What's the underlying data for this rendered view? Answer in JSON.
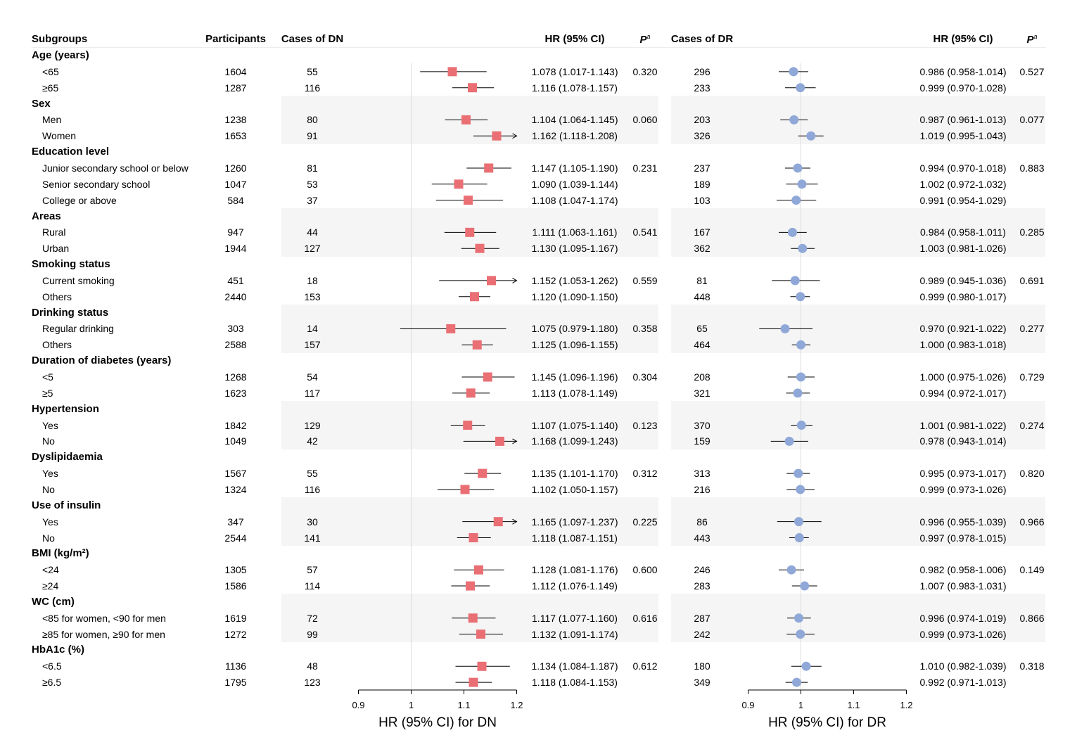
{
  "headers": {
    "subgroups": "Subgroups",
    "participants": "Participants",
    "cases_dn": "Cases of DN",
    "hr_dn": "HR (95% CI)",
    "p_dn": "P",
    "p_dn_sup": "a",
    "cases_dr": "Cases of DR",
    "hr_dr": "HR (95% CI)",
    "p_dr": "P",
    "p_dr_sup": "a"
  },
  "groups": [
    {
      "label": "Age (years)",
      "rows": [
        {
          "label": "<65",
          "participants": "1604",
          "dn_cases": "55",
          "dn_hr_text": "1.078 (1.017-1.143)",
          "dn_p": "0.320",
          "dn_hr": 1.078,
          "dn_lo": 1.017,
          "dn_hi": 1.143,
          "dr_cases": "296",
          "dr_hr_text": "0.986 (0.958-1.014)",
          "dr_p": "0.527",
          "dr_hr": 0.986,
          "dr_lo": 0.958,
          "dr_hi": 1.014
        },
        {
          "label": "≥65",
          "participants": "1287",
          "dn_cases": "116",
          "dn_hr_text": "1.116 (1.078-1.157)",
          "dn_p": "",
          "dn_hr": 1.116,
          "dn_lo": 1.078,
          "dn_hi": 1.157,
          "dr_cases": "233",
          "dr_hr_text": "0.999 (0.970-1.028)",
          "dr_p": "",
          "dr_hr": 0.999,
          "dr_lo": 0.97,
          "dr_hi": 1.028
        }
      ]
    },
    {
      "label": "Sex",
      "rows": [
        {
          "label": "Men",
          "participants": "1238",
          "dn_cases": "80",
          "dn_hr_text": "1.104 (1.064-1.145)",
          "dn_p": "0.060",
          "dn_hr": 1.104,
          "dn_lo": 1.064,
          "dn_hi": 1.145,
          "dr_cases": "203",
          "dr_hr_text": "0.987 (0.961-1.013)",
          "dr_p": "0.077",
          "dr_hr": 0.987,
          "dr_lo": 0.961,
          "dr_hi": 1.013
        },
        {
          "label": "Women",
          "participants": "1653",
          "dn_cases": "91",
          "dn_hr_text": "1.162 (1.118-1.208)",
          "dn_p": "",
          "dn_hr": 1.162,
          "dn_lo": 1.118,
          "dn_hi": 1.208,
          "dr_cases": "326",
          "dr_hr_text": "1.019 (0.995-1.043)",
          "dr_p": "",
          "dr_hr": 1.019,
          "dr_lo": 0.995,
          "dr_hi": 1.043
        }
      ]
    },
    {
      "label": "Education level",
      "rows": [
        {
          "label": "Junior secondary school or below",
          "participants": "1260",
          "dn_cases": "81",
          "dn_hr_text": "1.147 (1.105-1.190)",
          "dn_p": "0.231",
          "dn_hr": 1.147,
          "dn_lo": 1.105,
          "dn_hi": 1.19,
          "dr_cases": "237",
          "dr_hr_text": "0.994 (0.970-1.018)",
          "dr_p": "0.883",
          "dr_hr": 0.994,
          "dr_lo": 0.97,
          "dr_hi": 1.018
        },
        {
          "label": "Senior secondary school",
          "participants": "1047",
          "dn_cases": "53",
          "dn_hr_text": "1.090 (1.039-1.144)",
          "dn_p": "",
          "dn_hr": 1.09,
          "dn_lo": 1.039,
          "dn_hi": 1.144,
          "dr_cases": "189",
          "dr_hr_text": "1.002 (0.972-1.032)",
          "dr_p": "",
          "dr_hr": 1.002,
          "dr_lo": 0.972,
          "dr_hi": 1.032
        },
        {
          "label": "College or above",
          "participants": "584",
          "dn_cases": "37",
          "dn_hr_text": "1.108 (1.047-1.174)",
          "dn_p": "",
          "dn_hr": 1.108,
          "dn_lo": 1.047,
          "dn_hi": 1.174,
          "dr_cases": "103",
          "dr_hr_text": "0.991 (0.954-1.029)",
          "dr_p": "",
          "dr_hr": 0.991,
          "dr_lo": 0.954,
          "dr_hi": 1.029
        }
      ]
    },
    {
      "label": "Areas",
      "rows": [
        {
          "label": "Rural",
          "participants": "947",
          "dn_cases": "44",
          "dn_hr_text": "1.111 (1.063-1.161)",
          "dn_p": "0.541",
          "dn_hr": 1.111,
          "dn_lo": 1.063,
          "dn_hi": 1.161,
          "dr_cases": "167",
          "dr_hr_text": "0.984 (0.958-1.011)",
          "dr_p": "0.285",
          "dr_hr": 0.984,
          "dr_lo": 0.958,
          "dr_hi": 1.011
        },
        {
          "label": "Urban",
          "participants": "1944",
          "dn_cases": "127",
          "dn_hr_text": "1.130 (1.095-1.167)",
          "dn_p": "",
          "dn_hr": 1.13,
          "dn_lo": 1.095,
          "dn_hi": 1.167,
          "dr_cases": "362",
          "dr_hr_text": "1.003 (0.981-1.026)",
          "dr_p": "",
          "dr_hr": 1.003,
          "dr_lo": 0.981,
          "dr_hi": 1.026
        }
      ]
    },
    {
      "label": "Smoking status",
      "rows": [
        {
          "label": "Current smoking",
          "participants": "451",
          "dn_cases": "18",
          "dn_hr_text": "1.152 (1.053-1.262)",
          "dn_p": "0.559",
          "dn_hr": 1.152,
          "dn_lo": 1.053,
          "dn_hi": 1.262,
          "dr_cases": "81",
          "dr_hr_text": "0.989 (0.945-1.036)",
          "dr_p": "0.691",
          "dr_hr": 0.989,
          "dr_lo": 0.945,
          "dr_hi": 1.036
        },
        {
          "label": "Others",
          "participants": "2440",
          "dn_cases": "153",
          "dn_hr_text": "1.120 (1.090-1.150)",
          "dn_p": "",
          "dn_hr": 1.12,
          "dn_lo": 1.09,
          "dn_hi": 1.15,
          "dr_cases": "448",
          "dr_hr_text": "0.999 (0.980-1.017)",
          "dr_p": "",
          "dr_hr": 0.999,
          "dr_lo": 0.98,
          "dr_hi": 1.017
        }
      ]
    },
    {
      "label": "Drinking status",
      "rows": [
        {
          "label": "Regular drinking",
          "participants": "303",
          "dn_cases": "14",
          "dn_hr_text": "1.075 (0.979-1.180)",
          "dn_p": "0.358",
          "dn_hr": 1.075,
          "dn_lo": 0.979,
          "dn_hi": 1.18,
          "dr_cases": "65",
          "dr_hr_text": "0.970 (0.921-1.022)",
          "dr_p": "0.277",
          "dr_hr": 0.97,
          "dr_lo": 0.921,
          "dr_hi": 1.022
        },
        {
          "label": "Others",
          "participants": "2588",
          "dn_cases": "157",
          "dn_hr_text": "1.125 (1.096-1.155)",
          "dn_p": "",
          "dn_hr": 1.125,
          "dn_lo": 1.096,
          "dn_hi": 1.155,
          "dr_cases": "464",
          "dr_hr_text": "1.000 (0.983-1.018)",
          "dr_p": "",
          "dr_hr": 1.0,
          "dr_lo": 0.983,
          "dr_hi": 1.018
        }
      ]
    },
    {
      "label": "Duration of diabetes (years)",
      "rows": [
        {
          "label": "<5",
          "participants": "1268",
          "dn_cases": "54",
          "dn_hr_text": "1.145 (1.096-1.196)",
          "dn_p": "0.304",
          "dn_hr": 1.145,
          "dn_lo": 1.096,
          "dn_hi": 1.196,
          "dr_cases": "208",
          "dr_hr_text": "1.000 (0.975-1.026)",
          "dr_p": "0.729",
          "dr_hr": 1.0,
          "dr_lo": 0.975,
          "dr_hi": 1.026
        },
        {
          "label": "≥5",
          "participants": "1623",
          "dn_cases": "117",
          "dn_hr_text": "1.113 (1.078-1.149)",
          "dn_p": "",
          "dn_hr": 1.113,
          "dn_lo": 1.078,
          "dn_hi": 1.149,
          "dr_cases": "321",
          "dr_hr_text": "0.994 (0.972-1.017)",
          "dr_p": "",
          "dr_hr": 0.994,
          "dr_lo": 0.972,
          "dr_hi": 1.017
        }
      ]
    },
    {
      "label": "Hypertension",
      "rows": [
        {
          "label": "Yes",
          "participants": "1842",
          "dn_cases": "129",
          "dn_hr_text": "1.107 (1.075-1.140)",
          "dn_p": "0.123",
          "dn_hr": 1.107,
          "dn_lo": 1.075,
          "dn_hi": 1.14,
          "dr_cases": "370",
          "dr_hr_text": "1.001 (0.981-1.022)",
          "dr_p": "0.274",
          "dr_hr": 1.001,
          "dr_lo": 0.981,
          "dr_hi": 1.022
        },
        {
          "label": "No",
          "participants": "1049",
          "dn_cases": "42",
          "dn_hr_text": "1.168 (1.099-1.243)",
          "dn_p": "",
          "dn_hr": 1.168,
          "dn_lo": 1.099,
          "dn_hi": 1.243,
          "dr_cases": "159",
          "dr_hr_text": "0.978 (0.943-1.014)",
          "dr_p": "",
          "dr_hr": 0.978,
          "dr_lo": 0.943,
          "dr_hi": 1.014
        }
      ]
    },
    {
      "label": "Dyslipidaemia",
      "rows": [
        {
          "label": "Yes",
          "participants": "1567",
          "dn_cases": "55",
          "dn_hr_text": "1.135 (1.101-1.170)",
          "dn_p": "0.312",
          "dn_hr": 1.135,
          "dn_lo": 1.101,
          "dn_hi": 1.17,
          "dr_cases": "313",
          "dr_hr_text": "0.995 (0.973-1.017)",
          "dr_p": "0.820",
          "dr_hr": 0.995,
          "dr_lo": 0.973,
          "dr_hi": 1.017
        },
        {
          "label": "No",
          "participants": "1324",
          "dn_cases": "116",
          "dn_hr_text": "1.102 (1.050-1.157)",
          "dn_p": "",
          "dn_hr": 1.102,
          "dn_lo": 1.05,
          "dn_hi": 1.157,
          "dr_cases": "216",
          "dr_hr_text": "0.999 (0.973-1.026)",
          "dr_p": "",
          "dr_hr": 0.999,
          "dr_lo": 0.973,
          "dr_hi": 1.026
        }
      ]
    },
    {
      "label": "Use of insulin",
      "rows": [
        {
          "label": "Yes",
          "participants": "347",
          "dn_cases": "30",
          "dn_hr_text": "1.165 (1.097-1.237)",
          "dn_p": "0.225",
          "dn_hr": 1.165,
          "dn_lo": 1.097,
          "dn_hi": 1.237,
          "dr_cases": "86",
          "dr_hr_text": "0.996 (0.955-1.039)",
          "dr_p": "0.966",
          "dr_hr": 0.996,
          "dr_lo": 0.955,
          "dr_hi": 1.039
        },
        {
          "label": "No",
          "participants": "2544",
          "dn_cases": "141",
          "dn_hr_text": "1.118 (1.087-1.151)",
          "dn_p": "",
          "dn_hr": 1.118,
          "dn_lo": 1.087,
          "dn_hi": 1.151,
          "dr_cases": "443",
          "dr_hr_text": "0.997 (0.978-1.015)",
          "dr_p": "",
          "dr_hr": 0.997,
          "dr_lo": 0.978,
          "dr_hi": 1.015
        }
      ]
    },
    {
      "label": "BMI (kg/m²)",
      "rows": [
        {
          "label": "<24",
          "participants": "1305",
          "dn_cases": "57",
          "dn_hr_text": "1.128 (1.081-1.176)",
          "dn_p": "0.600",
          "dn_hr": 1.128,
          "dn_lo": 1.081,
          "dn_hi": 1.176,
          "dr_cases": "246",
          "dr_hr_text": "0.982 (0.958-1.006)",
          "dr_p": "0.149",
          "dr_hr": 0.982,
          "dr_lo": 0.958,
          "dr_hi": 1.006
        },
        {
          "label": "≥24",
          "participants": "1586",
          "dn_cases": "114",
          "dn_hr_text": "1.112 (1.076-1.149)",
          "dn_p": "",
          "dn_hr": 1.112,
          "dn_lo": 1.076,
          "dn_hi": 1.149,
          "dr_cases": "283",
          "dr_hr_text": "1.007 (0.983-1.031)",
          "dr_p": "",
          "dr_hr": 1.007,
          "dr_lo": 0.983,
          "dr_hi": 1.031
        }
      ]
    },
    {
      "label": "WC (cm)",
      "rows": [
        {
          "label": "<85 for women, <90 for men",
          "participants": "1619",
          "dn_cases": "72",
          "dn_hr_text": "1.117 (1.077-1.160)",
          "dn_p": "0.616",
          "dn_hr": 1.117,
          "dn_lo": 1.077,
          "dn_hi": 1.16,
          "dr_cases": "287",
          "dr_hr_text": "0.996 (0.974-1.019)",
          "dr_p": "0.866",
          "dr_hr": 0.996,
          "dr_lo": 0.974,
          "dr_hi": 1.019
        },
        {
          "label": "≥85 for women, ≥90 for men",
          "participants": "1272",
          "dn_cases": "99",
          "dn_hr_text": "1.132 (1.091-1.174)",
          "dn_p": "",
          "dn_hr": 1.132,
          "dn_lo": 1.091,
          "dn_hi": 1.174,
          "dr_cases": "242",
          "dr_hr_text": "0.999 (0.973-1.026)",
          "dr_p": "",
          "dr_hr": 0.999,
          "dr_lo": 0.973,
          "dr_hi": 1.026
        }
      ]
    },
    {
      "label": "HbA1c (%)",
      "rows": [
        {
          "label": "<6.5",
          "participants": "1136",
          "dn_cases": "48",
          "dn_hr_text": "1.134 (1.084-1.187)",
          "dn_p": "0.612",
          "dn_hr": 1.134,
          "dn_lo": 1.084,
          "dn_hi": 1.187,
          "dr_cases": "180",
          "dr_hr_text": "1.010 (0.982-1.039)",
          "dr_p": "0.318",
          "dr_hr": 1.01,
          "dr_lo": 0.982,
          "dr_hi": 1.039
        },
        {
          "label": "≥6.5",
          "participants": "1795",
          "dn_cases": "123",
          "dn_hr_text": "1.118 (1.084-1.153)",
          "dn_p": "",
          "dn_hr": 1.118,
          "dn_lo": 1.084,
          "dn_hi": 1.153,
          "dr_cases": "349",
          "dr_hr_text": "0.992 (0.971-1.013)",
          "dr_p": "",
          "dr_hr": 0.992,
          "dr_lo": 0.971,
          "dr_hi": 1.013
        }
      ]
    }
  ],
  "colors": {
    "dn_marker": "#ea6f74",
    "dr_marker": "#8fa8d8",
    "band": "#f5f5f5",
    "refline": "#dcdcdc"
  },
  "chart_data": [
    {
      "type": "forest",
      "title": "HR (95% CI) for DN",
      "xlabel": "HR (95% CI) for DN",
      "xlim": [
        0.9,
        1.2
      ],
      "reference": 1.0,
      "ticks": [
        0.9,
        1.0,
        1.1,
        1.2
      ],
      "tick_labels": [
        "0.9",
        "1",
        "1.1",
        "1.2"
      ],
      "marker": "square",
      "clipped_arrow_above": 1.2
    },
    {
      "type": "forest",
      "title": "HR (95% CI) for DR",
      "xlabel": "HR (95% CI) for DR",
      "xlim": [
        0.9,
        1.2
      ],
      "reference": 1.0,
      "ticks": [
        0.9,
        1.0,
        1.1,
        1.2
      ],
      "tick_labels": [
        "0.9",
        "1",
        "1.1",
        "1.2"
      ],
      "marker": "circle"
    }
  ]
}
